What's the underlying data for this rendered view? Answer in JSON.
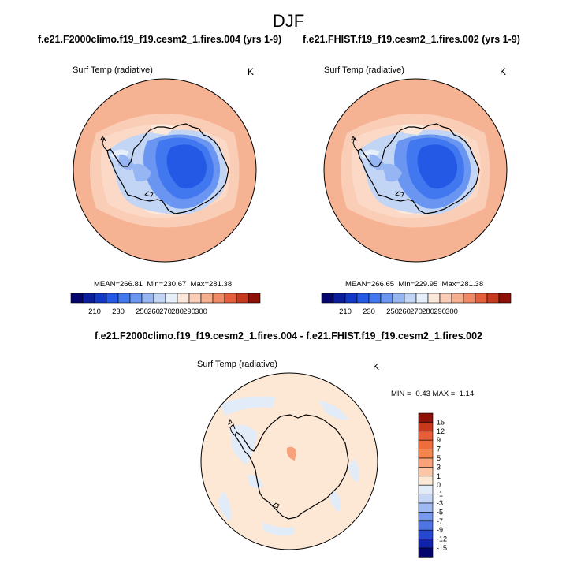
{
  "title": "DJF",
  "panels": [
    {
      "case": "f.e21.F2000climo.f19_f19.cesm2_1.fires.004 (yrs 1-9)",
      "variable": "Surf Temp (radiative)",
      "units": "K",
      "stats": {
        "mean_label": "MEAN=",
        "mean": "266.81",
        "min_label": "Min=",
        "min": "230.67",
        "max_label": "Max=",
        "max": "281.38"
      }
    },
    {
      "case": "f.e21.FHIST.f19_f19.cesm2_1.fires.002 (yrs 1-9)",
      "variable": "Surf Temp (radiative)",
      "units": "K",
      "stats": {
        "mean_label": "MEAN=",
        "mean": "266.65",
        "min_label": "Min=",
        "min": "229.95",
        "max_label": "Max=",
        "max": "281.38"
      }
    }
  ],
  "abs_colorbar": {
    "labels": [
      "210",
      "230",
      "250",
      "260",
      "270",
      "280",
      "290",
      "300"
    ],
    "colors": [
      "#05066d",
      "#0a1e9e",
      "#1238c8",
      "#2459e6",
      "#4178f0",
      "#6a96f2",
      "#96b6f3",
      "#c2d5f4",
      "#e6effa",
      "#fde8dc",
      "#f9cdb6",
      "#f5ae8e",
      "#ef8a64",
      "#e65f3b",
      "#c8381c",
      "#8d0f06"
    ]
  },
  "diff": {
    "title": "f.e21.F2000climo.f19_f19.cesm2_1.fires.004 - f.e21.FHIST.f19_f19.cesm2_1.fires.002",
    "variable": "Surf Temp (radiative)",
    "units": "K",
    "stats": {
      "min_label": "MIN =",
      "min": "-0.43",
      "max_label": "MAX =",
      "max": "1.14"
    },
    "colorbar": {
      "labels": [
        "15",
        "12",
        "9",
        "7",
        "5",
        "3",
        "1",
        "0",
        "-1",
        "-3",
        "-5",
        "-7",
        "-9",
        "-12",
        "-15"
      ],
      "colors": [
        "#8d0f06",
        "#c8381c",
        "#e65f3b",
        "#ef6c3c",
        "#f5844f",
        "#f7a27b",
        "#fbc6a8",
        "#fde8d6",
        "#e2ecf9",
        "#c5d7f4",
        "#9db9f0",
        "#7899ec",
        "#4f75e4",
        "#2647d2",
        "#0f22a8",
        "#05066d"
      ]
    }
  }
}
